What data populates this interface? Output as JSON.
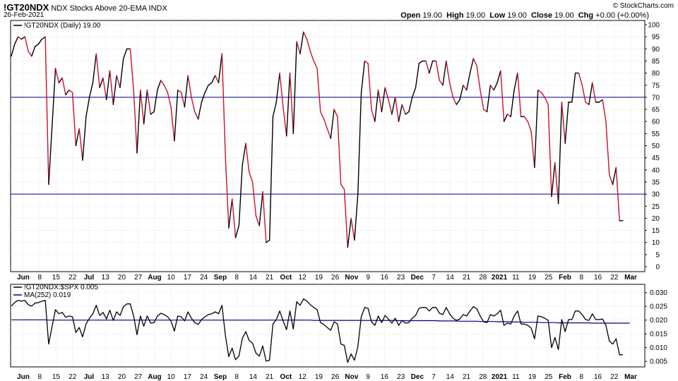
{
  "header": {
    "symbol": "!GT20NDX",
    "name": "NDX Stocks Above 20-EMA",
    "exchange": "INDX",
    "date": "26-Feb-2021",
    "brand": "© StockCharts.com",
    "open_label": "Open",
    "open": "19.00",
    "high_label": "High",
    "high": "19.00",
    "low_label": "Low",
    "low": "19.00",
    "close_label": "Close",
    "close": "19.00",
    "chg_label": "Chg",
    "chg": "+0.00 (+0.00%)"
  },
  "colors": {
    "up": "#000000",
    "down": "#c8102e",
    "hline": "#000080",
    "ma": "#000080",
    "grid": "#cccccc"
  },
  "chart_data": [
    {
      "type": "line",
      "legend": "!GT20NDX (Daily) 19.00",
      "ylim": [
        0,
        100
      ],
      "yticks": [
        0,
        5,
        10,
        15,
        20,
        25,
        30,
        35,
        40,
        45,
        50,
        55,
        60,
        65,
        70,
        75,
        80,
        85,
        90,
        95,
        100
      ],
      "hlines": [
        70,
        30
      ],
      "x_axis_labels": [
        {
          "label": "Jun",
          "bold": true
        },
        {
          "label": "8"
        },
        {
          "label": "15"
        },
        {
          "label": "22"
        },
        {
          "label": "Jul",
          "bold": true
        },
        {
          "label": "13"
        },
        {
          "label": "20"
        },
        {
          "label": "27"
        },
        {
          "label": "Aug",
          "bold": true
        },
        {
          "label": "10"
        },
        {
          "label": "17"
        },
        {
          "label": "24"
        },
        {
          "label": "Sep",
          "bold": true
        },
        {
          "label": "8"
        },
        {
          "label": "14"
        },
        {
          "label": "21"
        },
        {
          "label": "Oct",
          "bold": true
        },
        {
          "label": "12"
        },
        {
          "label": "19"
        },
        {
          "label": "26"
        },
        {
          "label": "Nov",
          "bold": true
        },
        {
          "label": "9"
        },
        {
          "label": "16"
        },
        {
          "label": "23"
        },
        {
          "label": "Dec",
          "bold": true
        },
        {
          "label": "7"
        },
        {
          "label": "14"
        },
        {
          "label": "21"
        },
        {
          "label": "28"
        },
        {
          "label": "2021",
          "bold": true
        },
        {
          "label": "11"
        },
        {
          "label": "19"
        },
        {
          "label": "25"
        },
        {
          "label": "Feb",
          "bold": true
        },
        {
          "label": "8"
        },
        {
          "label": "16"
        },
        {
          "label": "22"
        },
        {
          "label": "Mar",
          "bold": true
        }
      ],
      "values": [
        87,
        92,
        95,
        94,
        95,
        89,
        87,
        91,
        92,
        94,
        95,
        34,
        58,
        82,
        76,
        78,
        71,
        73,
        72,
        50,
        57,
        44,
        62,
        70,
        76,
        88,
        74,
        78,
        69,
        81,
        67,
        79,
        74,
        86,
        90,
        90,
        73,
        47,
        73,
        59,
        73,
        63,
        64,
        73,
        77,
        75,
        72,
        66,
        52,
        73,
        72,
        66,
        79,
        70,
        64,
        61,
        68,
        72,
        75,
        76,
        79,
        76,
        88,
        46,
        16,
        28,
        12,
        17,
        42,
        51,
        39,
        35,
        21,
        17,
        31,
        10,
        11,
        62,
        68,
        80,
        66,
        54,
        80,
        55,
        93,
        88,
        97,
        94,
        89,
        85,
        82,
        64,
        61,
        57,
        53,
        65,
        62,
        34,
        32,
        8,
        20,
        11,
        30,
        72,
        85,
        84,
        65,
        60,
        73,
        64,
        74,
        69,
        63,
        70,
        60,
        67,
        63,
        64,
        70,
        74,
        84,
        85,
        85,
        80,
        85,
        85,
        77,
        75,
        85,
        76,
        70,
        67,
        69,
        75,
        73,
        80,
        86,
        83,
        73,
        65,
        64,
        75,
        73,
        76,
        81,
        60,
        63,
        62,
        73,
        80,
        62,
        62,
        60,
        56,
        41,
        73,
        72,
        70,
        67,
        29,
        43,
        26,
        68,
        51,
        68,
        68,
        80,
        80,
        75,
        68,
        67,
        76,
        68,
        68,
        69,
        60,
        38,
        34,
        41,
        19,
        19
      ]
    },
    {
      "type": "line",
      "legend_ratio": "!GT20NDX:$SPX 0.005",
      "legend_ma": "MA(252) 0.019",
      "ylim": [
        0.0035,
        0.0325
      ],
      "yticks": [
        "0.005",
        "0.010",
        "0.015",
        "0.020",
        "0.025",
        "0.030"
      ],
      "ytick_values": [
        0.005,
        0.01,
        0.015,
        0.02,
        0.025,
        0.03
      ],
      "ma_values": [
        0.0201,
        0.0201,
        0.0201,
        0.0201,
        0.0201,
        0.0201,
        0.0201,
        0.0201,
        0.0201,
        0.0201,
        0.0201,
        0.02,
        0.02,
        0.02,
        0.02,
        0.02,
        0.02,
        0.02,
        0.02,
        0.02,
        0.02,
        0.02,
        0.02,
        0.02,
        0.02,
        0.02,
        0.02,
        0.02,
        0.02,
        0.02,
        0.02,
        0.02,
        0.02,
        0.02,
        0.02,
        0.02,
        0.02,
        0.02,
        0.02,
        0.02,
        0.02,
        0.02,
        0.02,
        0.02,
        0.02,
        0.02,
        0.02,
        0.02,
        0.02,
        0.02,
        0.02,
        0.02,
        0.02,
        0.02,
        0.02,
        0.02,
        0.02,
        0.02,
        0.02,
        0.02,
        0.02,
        0.02,
        0.02,
        0.02,
        0.02,
        0.02,
        0.02,
        0.02,
        0.02,
        0.02,
        0.02,
        0.02,
        0.02,
        0.02,
        0.02,
        0.02,
        0.02,
        0.02,
        0.02,
        0.02,
        0.02,
        0.02,
        0.02,
        0.02,
        0.02,
        0.02,
        0.02,
        0.02,
        0.02,
        0.0199,
        0.0199,
        0.0199,
        0.0199,
        0.0199,
        0.0199,
        0.0199,
        0.0199,
        0.0199,
        0.0199,
        0.0199,
        0.0199,
        0.0199,
        0.0199,
        0.0199,
        0.0199,
        0.0199,
        0.0199,
        0.0199,
        0.0199,
        0.0199,
        0.0199,
        0.0199,
        0.0199,
        0.0199,
        0.0198,
        0.0198,
        0.0198,
        0.0198,
        0.0198,
        0.0198,
        0.0198,
        0.0198,
        0.0198,
        0.0198,
        0.0198,
        0.0198,
        0.0197,
        0.0197,
        0.0197,
        0.0197,
        0.0197,
        0.0197,
        0.0196,
        0.0196,
        0.0196,
        0.0196,
        0.0196,
        0.0196,
        0.0195,
        0.0195,
        0.0195,
        0.0195,
        0.0195,
        0.0194,
        0.0194,
        0.0194,
        0.0194,
        0.0193,
        0.0193,
        0.0193,
        0.0193,
        0.0192,
        0.0192,
        0.0192,
        0.0192,
        0.0192,
        0.0191,
        0.0191,
        0.0191,
        0.0191,
        0.0191,
        0.019,
        0.019,
        0.019,
        0.019,
        0.019,
        0.019,
        0.019,
        0.019,
        0.019,
        0.019,
        0.0189,
        0.0189,
        0.0189,
        0.0189,
        0.0189,
        0.0189,
        0.0189,
        0.0189,
        0.0189,
        0.0189,
        0.0189,
        0.0189
      ]
    }
  ]
}
